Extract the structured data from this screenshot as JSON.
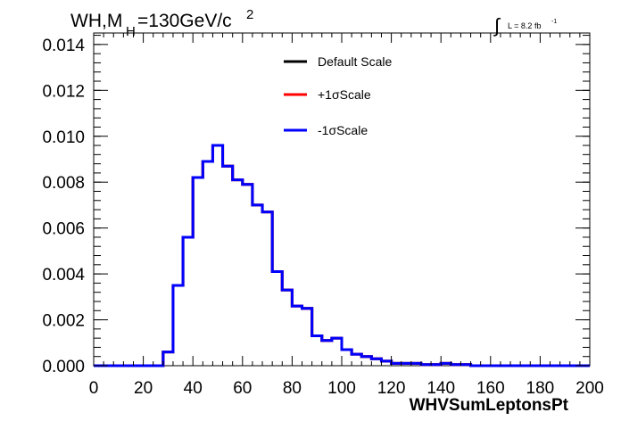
{
  "chart_data": {
    "type": "line",
    "title": {
      "process": "WH,M",
      "subscript": "H",
      "mass": "=130GeV/c",
      "superscript": "2"
    },
    "luminosity": {
      "integral_sign": "∫",
      "label": "L = 8.2 fb",
      "superscript": "-1"
    },
    "xlabel": "WHVSumLeptonsPt",
    "ylabel": "",
    "xlim": [
      0,
      200
    ],
    "ylim": [
      0,
      0.0145
    ],
    "x_ticks": [
      0,
      20,
      40,
      60,
      80,
      100,
      120,
      140,
      160,
      180,
      200
    ],
    "x_tick_labels": [
      "0",
      "20",
      "40",
      "60",
      "80",
      "100",
      "120",
      "140",
      "160",
      "180",
      "200"
    ],
    "y_ticks": [
      0,
      0.002,
      0.004,
      0.006,
      0.008,
      0.01,
      0.012,
      0.014
    ],
    "y_tick_labels": [
      "0.000",
      "0.002",
      "0.004",
      "0.006",
      "0.008",
      "0.010",
      "0.012",
      "0.014"
    ],
    "grid": false,
    "legend_position": "top-right",
    "bin_edges": [
      0,
      4,
      8,
      12,
      16,
      20,
      24,
      28,
      32,
      36,
      40,
      44,
      48,
      52,
      56,
      60,
      64,
      68,
      72,
      76,
      80,
      84,
      88,
      92,
      96,
      100,
      104,
      108,
      112,
      116,
      120,
      124,
      128,
      132,
      136,
      140,
      144,
      148,
      152,
      156,
      160,
      164,
      168,
      172,
      176,
      180,
      184,
      188,
      192,
      196,
      200
    ],
    "series": [
      {
        "name": "Default Scale",
        "color": "#000000",
        "values": [
          0,
          0,
          0,
          0,
          0,
          0,
          0,
          0.0006,
          0.0035,
          0.0056,
          0.0082,
          0.0089,
          0.0096,
          0.0087,
          0.0081,
          0.0079,
          0.007,
          0.0067,
          0.0041,
          0.0033,
          0.0026,
          0.0025,
          0.0013,
          0.0011,
          0.0012,
          0.0007,
          0.0005,
          0.0004,
          0.0003,
          0.0002,
          0.0001,
          0.0001,
          0.0001,
          5e-05,
          5e-05,
          0.0001,
          5e-05,
          5e-05,
          0,
          0,
          0,
          0,
          0,
          0,
          0,
          0,
          0,
          0,
          0,
          0
        ]
      },
      {
        "name": "+1σScale",
        "color": "#ff0000",
        "values": [
          0,
          0,
          0,
          0,
          0,
          0,
          0,
          0.0006,
          0.0035,
          0.0056,
          0.0082,
          0.0089,
          0.0096,
          0.0087,
          0.0081,
          0.0079,
          0.007,
          0.0067,
          0.0041,
          0.0033,
          0.0026,
          0.0025,
          0.0013,
          0.0011,
          0.0012,
          0.0007,
          0.0005,
          0.0004,
          0.0003,
          0.0002,
          0.0001,
          0.0001,
          0.0001,
          5e-05,
          5e-05,
          0.0001,
          5e-05,
          5e-05,
          0,
          0,
          0,
          0,
          0,
          0,
          0,
          0,
          0,
          0,
          0,
          0
        ]
      },
      {
        "name": "-1σScale",
        "color": "#0000ff",
        "values": [
          0,
          0,
          0,
          0,
          0,
          0,
          0,
          0.0006,
          0.0035,
          0.0056,
          0.0082,
          0.0089,
          0.0096,
          0.0087,
          0.0081,
          0.0079,
          0.007,
          0.0067,
          0.0041,
          0.0033,
          0.0026,
          0.0025,
          0.0013,
          0.0011,
          0.0012,
          0.0007,
          0.0005,
          0.0004,
          0.0003,
          0.0002,
          0.0001,
          0.0001,
          0.0001,
          5e-05,
          5e-05,
          0.0001,
          5e-05,
          5e-05,
          0,
          0,
          0,
          0,
          0,
          0,
          0,
          0,
          0,
          0,
          0,
          0
        ]
      }
    ]
  }
}
